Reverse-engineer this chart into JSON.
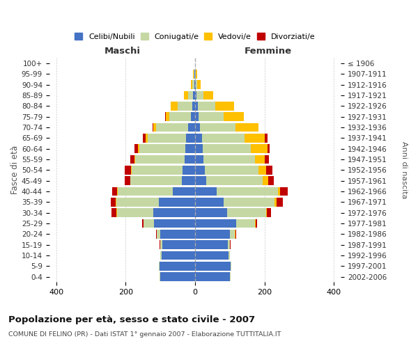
{
  "age_groups": [
    "0-4",
    "5-9",
    "10-14",
    "15-19",
    "20-24",
    "25-29",
    "30-34",
    "35-39",
    "40-44",
    "45-49",
    "50-54",
    "55-59",
    "60-64",
    "65-69",
    "70-74",
    "75-79",
    "80-84",
    "85-89",
    "90-94",
    "95-99",
    "100+"
  ],
  "birth_years": [
    "2002-2006",
    "1997-2001",
    "1992-1996",
    "1987-1991",
    "1982-1986",
    "1977-1981",
    "1972-1976",
    "1967-1971",
    "1962-1966",
    "1957-1961",
    "1952-1956",
    "1947-1951",
    "1942-1946",
    "1937-1941",
    "1932-1936",
    "1927-1931",
    "1922-1926",
    "1917-1921",
    "1912-1916",
    "1907-1911",
    "≤ 1906"
  ],
  "maschi": {
    "celibi": [
      100,
      102,
      97,
      95,
      100,
      118,
      120,
      105,
      65,
      38,
      35,
      30,
      28,
      25,
      20,
      12,
      8,
      5,
      2,
      1,
      0
    ],
    "coniugati": [
      2,
      2,
      3,
      5,
      10,
      30,
      105,
      122,
      158,
      148,
      148,
      142,
      132,
      112,
      92,
      62,
      42,
      15,
      5,
      2,
      0
    ],
    "vedovi": [
      0,
      0,
      0,
      1,
      1,
      1,
      1,
      1,
      1,
      1,
      2,
      3,
      5,
      5,
      8,
      10,
      20,
      12,
      5,
      2,
      0
    ],
    "divorziati": [
      0,
      0,
      0,
      1,
      2,
      3,
      15,
      15,
      15,
      15,
      18,
      12,
      10,
      8,
      2,
      2,
      0,
      0,
      0,
      0,
      0
    ]
  },
  "femmine": {
    "nubili": [
      100,
      102,
      97,
      95,
      100,
      118,
      92,
      82,
      62,
      32,
      28,
      25,
      22,
      20,
      15,
      10,
      8,
      5,
      2,
      1,
      0
    ],
    "coniugate": [
      2,
      2,
      3,
      5,
      15,
      55,
      112,
      148,
      178,
      162,
      155,
      148,
      138,
      122,
      102,
      72,
      50,
      20,
      5,
      2,
      0
    ],
    "vedove": [
      0,
      0,
      0,
      1,
      2,
      2,
      3,
      5,
      6,
      18,
      22,
      28,
      48,
      58,
      65,
      58,
      55,
      28,
      10,
      3,
      0
    ],
    "divorziate": [
      0,
      0,
      0,
      1,
      2,
      3,
      12,
      18,
      22,
      15,
      18,
      12,
      8,
      8,
      0,
      0,
      0,
      0,
      0,
      0,
      0
    ]
  },
  "colors": {
    "celibi_nubili": "#4472c4",
    "coniugati": "#c5d8a4",
    "vedovi": "#ffc000",
    "divorziati": "#c00000"
  },
  "xlim": 420,
  "title": "Popolazione per età, sesso e stato civile - 2007",
  "subtitle": "COMUNE DI FELINO (PR) - Dati ISTAT 1° gennaio 2007 - Elaborazione TUTTITALIA.IT",
  "xlabel_left": "Maschi",
  "xlabel_right": "Femmine",
  "ylabel_left": "Fasce di età",
  "ylabel_right": "Anni di nascita",
  "bg_color": "#ffffff",
  "grid_color": "#cccccc"
}
